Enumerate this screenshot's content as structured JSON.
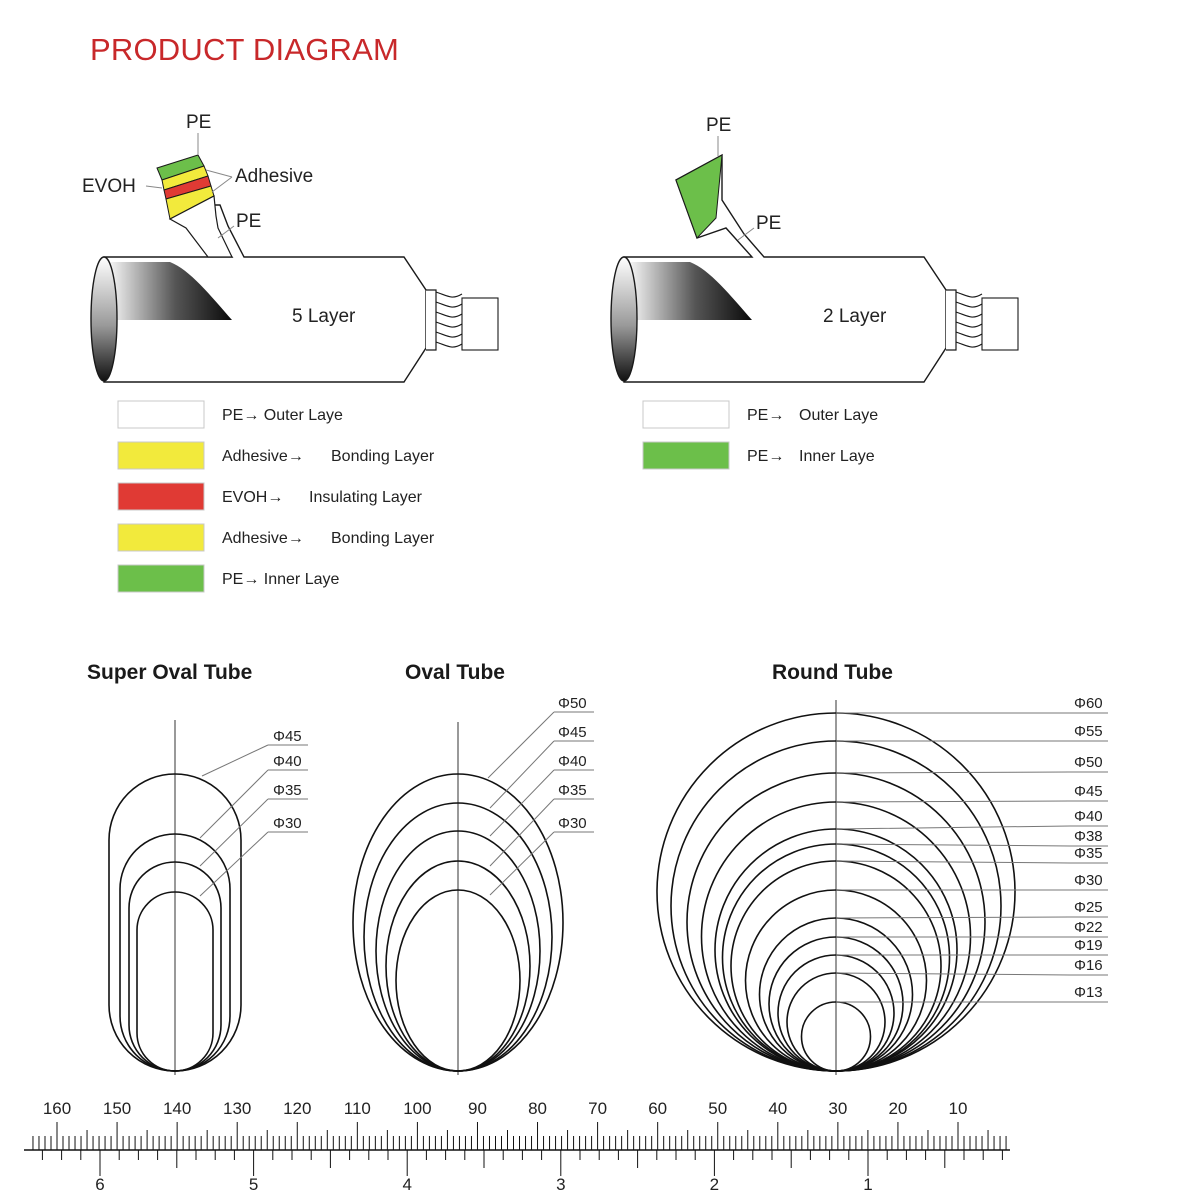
{
  "page": {
    "title": "PRODUCT DIAGRAM",
    "colors": {
      "title": "#c8282a",
      "green": "#6cbf4a",
      "yellow": "#f2ea3c",
      "red": "#e03a34",
      "line": "#1a1a1a"
    }
  },
  "five_layer": {
    "center_label": "5 Layer",
    "callouts": {
      "pe_top": "PE",
      "evoh": "EVOH",
      "adhesive": "Adhesive",
      "pe_inner": "PE"
    },
    "legend": [
      {
        "color": "#ffffff",
        "name": "PE→ Outer Laye",
        "desc": ""
      },
      {
        "color": "#f2ea3c",
        "name": "Adhesive→",
        "desc": "Bonding Layer"
      },
      {
        "color": "#e03a34",
        "name": "EVOH→",
        "desc": "Insulating Layer"
      },
      {
        "color": "#f2ea3c",
        "name": "Adhesive→",
        "desc": "Bonding Layer"
      },
      {
        "color": "#6cbf4a",
        "name": "PE→ Inner Laye",
        "desc": ""
      }
    ]
  },
  "two_layer": {
    "center_label": "2 Layer",
    "callouts": {
      "pe_top": "PE",
      "pe_inner": "PE"
    },
    "legend": [
      {
        "color": "#ffffff",
        "name": "PE→",
        "desc": "Outer Laye"
      },
      {
        "color": "#6cbf4a",
        "name": "PE→",
        "desc": "Inner Laye"
      }
    ]
  },
  "tubes": {
    "super_oval": {
      "title": "Super Oval Tube",
      "sizes": [
        "Φ45",
        "Φ40",
        "Φ35",
        "Φ30"
      ]
    },
    "oval": {
      "title": "Oval Tube",
      "sizes": [
        "Φ50",
        "Φ45",
        "Φ40",
        "Φ35",
        "Φ30"
      ]
    },
    "round": {
      "title": "Round Tube",
      "sizes": [
        "Φ60",
        "Φ55",
        "Φ50",
        "Φ45",
        "Φ40",
        "Φ38",
        "Φ35",
        "Φ30",
        "Φ25",
        "Φ22",
        "Φ19",
        "Φ16",
        "Φ13"
      ]
    }
  },
  "ruler": {
    "mm_labels": [
      "160",
      "150",
      "140",
      "130",
      "120",
      "110",
      "100",
      "90",
      "80",
      "70",
      "60",
      "50",
      "40",
      "30",
      "20",
      "10"
    ],
    "inch_labels": [
      "6",
      "5",
      "4",
      "3",
      "2",
      "1"
    ]
  }
}
